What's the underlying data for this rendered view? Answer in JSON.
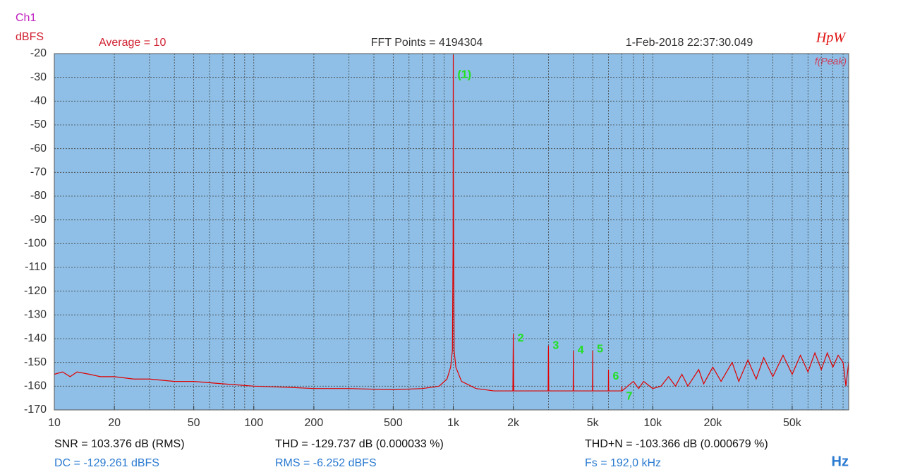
{
  "chart_data": {
    "type": "line",
    "channel": "Ch1",
    "y_label": "dBFS",
    "x_label": "Hz",
    "header_left": "Average = 10",
    "header_center": "FFT Points = 4194304",
    "header_right": "1-Feb-2018 22:37:30.049",
    "brand": "HpW",
    "mode": "f(Peak)",
    "x_log": true,
    "grid": true,
    "xlim": [
      10,
      96000
    ],
    "ylim": [
      -170,
      -20
    ],
    "yticks": [
      -20,
      -30,
      -40,
      -50,
      -60,
      -70,
      -80,
      -90,
      -100,
      -110,
      -120,
      -130,
      -140,
      -150,
      -160,
      -170
    ],
    "xticks": [
      10,
      20,
      50,
      100,
      200,
      500,
      {
        "value": 1000,
        "label": "1k"
      },
      {
        "value": 2000,
        "label": "2k"
      },
      {
        "value": 5000,
        "label": "5k"
      },
      {
        "value": 10000,
        "label": "10k"
      },
      {
        "value": 20000,
        "label": "20k"
      },
      {
        "value": 50000,
        "label": "50k"
      }
    ],
    "xminor": [
      30,
      40,
      60,
      70,
      80,
      90,
      300,
      400,
      600,
      700,
      800,
      900,
      3000,
      4000,
      6000,
      7000,
      8000,
      9000,
      30000,
      40000,
      60000,
      70000,
      80000,
      90000
    ],
    "x": [
      10,
      11,
      12,
      13,
      15,
      17,
      20,
      25,
      30,
      40,
      50,
      70,
      100,
      150,
      200,
      300,
      500,
      700,
      850,
      930,
      970,
      990,
      998,
      1000,
      1002,
      1010,
      1030,
      1100,
      1300,
      1600,
      1990,
      2000,
      2010,
      2500,
      2990,
      3000,
      3010,
      3500,
      3990,
      4000,
      4010,
      4500,
      4990,
      5000,
      5010,
      5500,
      5990,
      6000,
      6010,
      6990,
      7000,
      7010,
      8000,
      8500,
      9000,
      10000,
      11000,
      12000,
      13000,
      14000,
      15000,
      17000,
      18000,
      20000,
      22000,
      25000,
      27000,
      30000,
      33000,
      36000,
      40000,
      45000,
      50000,
      55000,
      60000,
      65000,
      70000,
      75000,
      80000,
      85000,
      90000,
      93000,
      96000
    ],
    "series": [
      {
        "name": "Ch1",
        "color": "#e00000",
        "values": [
          -155,
          -154,
          -156,
          -154,
          -155,
          -156,
          -156,
          -157,
          -157,
          -158,
          -158,
          -159,
          -160,
          -160.5,
          -161,
          -161,
          -161.5,
          -161,
          -160,
          -157,
          -152,
          -145,
          -100,
          -20.5,
          -74,
          -145,
          -152,
          -158,
          -161,
          -162,
          -162,
          -138,
          -162,
          -162,
          -162,
          -143,
          -162,
          -162,
          -162,
          -145,
          -162,
          -162,
          -162,
          -145,
          -162,
          -162,
          -162,
          -153,
          -162,
          -162,
          -160,
          -162,
          -158,
          -161,
          -158,
          -161,
          -160,
          -156,
          -160,
          -155,
          -160,
          -153,
          -159,
          -152,
          -158,
          -150,
          -158,
          -149,
          -157,
          -148,
          -156,
          -147,
          -155,
          -147,
          -154,
          -146,
          -153,
          -146,
          -152,
          -147,
          -150,
          -160,
          -150
        ]
      }
    ],
    "annotations": [
      {
        "text": "(1)",
        "x": 1000,
        "y": -29
      },
      {
        "text": "2",
        "x": 2000,
        "y": -140
      },
      {
        "text": "3",
        "x": 3000,
        "y": -143
      },
      {
        "text": "4",
        "x": 4000,
        "y": -145
      },
      {
        "text": "5",
        "x": 5000,
        "y": -144.5
      },
      {
        "text": "6",
        "x": 6000,
        "y": -156
      },
      {
        "text": "7",
        "x": 7000,
        "y": -164.5
      }
    ],
    "stats_top": [
      "SNR = 103.376 dB (RMS)",
      "THD = -129.737 dB (0.000033 %)",
      "THD+N = -103.366 dB (0.000679 %)"
    ],
    "stats_bottom": [
      "DC = -129.261 dBFS",
      "RMS = -6.252 dBFS",
      "Fs = 192,0 kHz"
    ]
  }
}
